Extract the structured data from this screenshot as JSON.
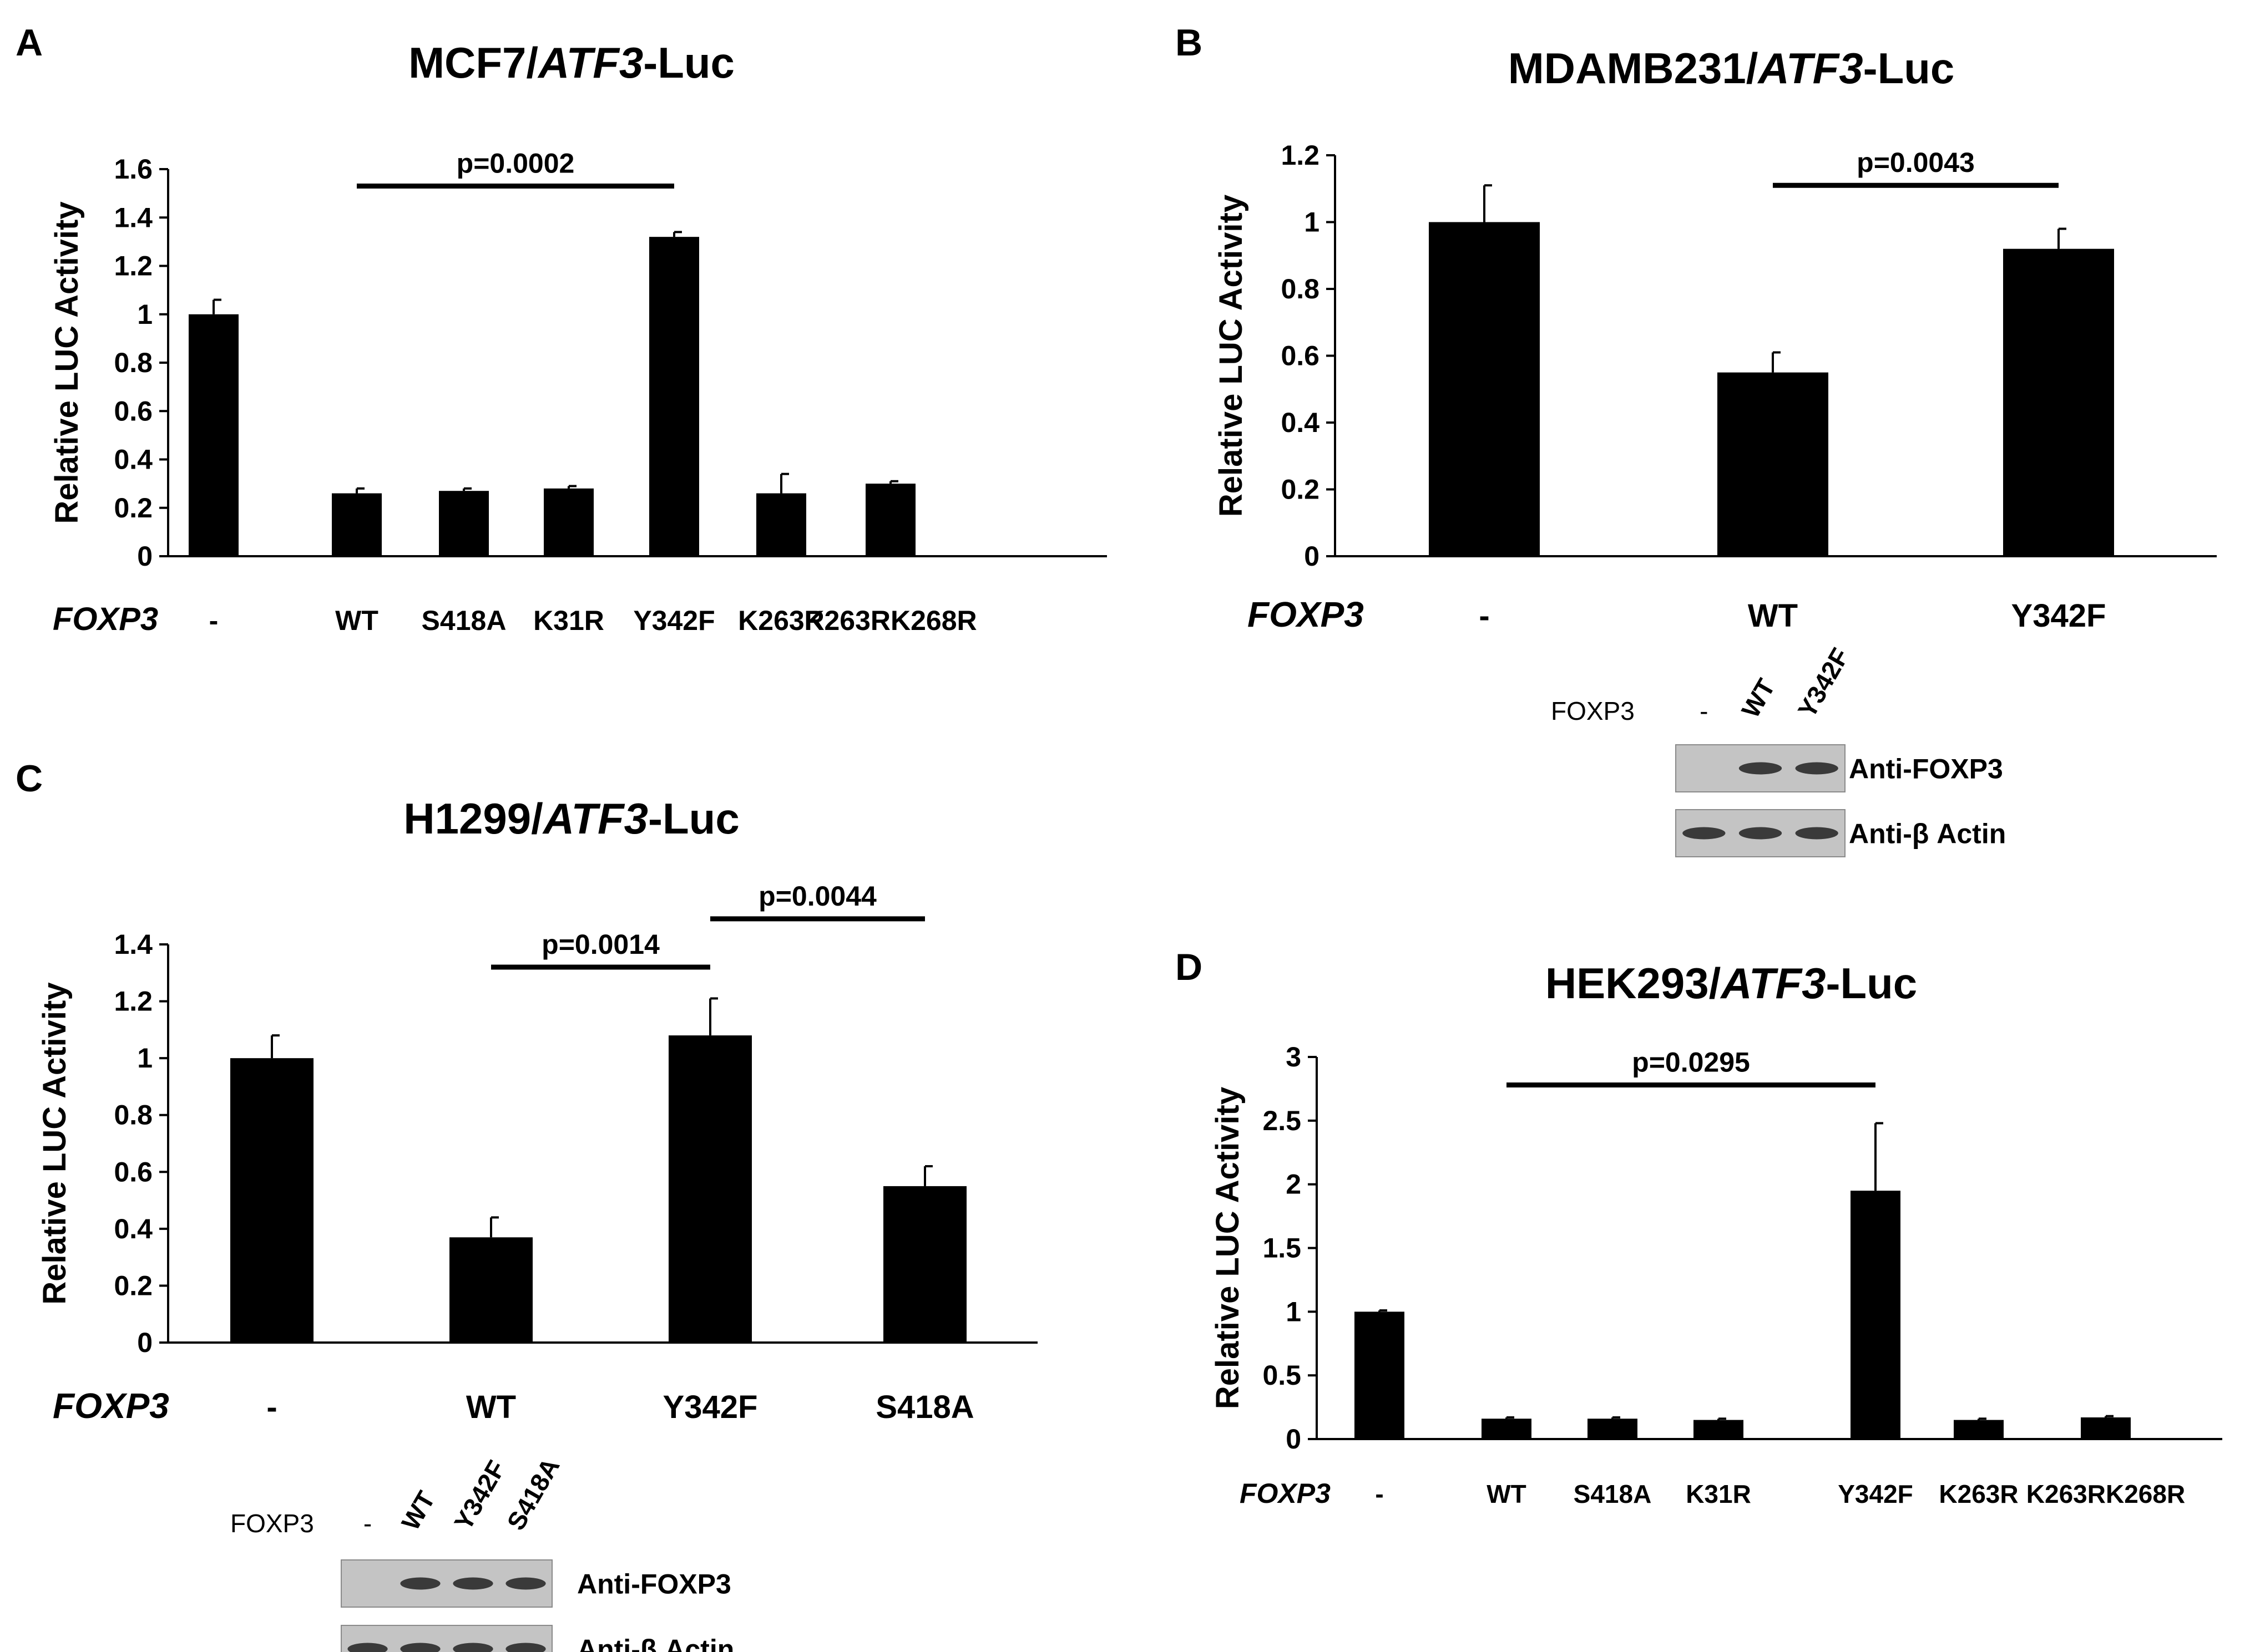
{
  "chart_data": [
    {
      "panel": "A",
      "type": "bar",
      "title_plain": "MCF7/",
      "title_italic": "ATF3",
      "title_suffix": "-Luc",
      "ylabel": "Relative LUC Activity",
      "ylim": [
        0,
        1.6
      ],
      "yticks": [
        "0",
        "0.2",
        "0.4",
        "0.6",
        "0.8",
        "1",
        "1.2",
        "1.4",
        "1.6"
      ],
      "gene_label": "FOXP3",
      "categories": [
        "-",
        "WT",
        "S418A",
        "K31R",
        "Y342F",
        "K263R",
        "K263RK268R"
      ],
      "values": [
        1.0,
        0.26,
        0.27,
        0.28,
        1.32,
        0.26,
        0.3
      ],
      "errors": [
        0.06,
        0.02,
        0.01,
        0.01,
        0.02,
        0.08,
        0.01
      ],
      "significance": [
        {
          "from": 1,
          "to": 4,
          "label": "p=0.0002",
          "y": 1.53
        }
      ]
    },
    {
      "panel": "B",
      "type": "bar",
      "title_plain": "MDAMB231/",
      "title_italic": "ATF3",
      "title_suffix": "-Luc",
      "ylabel": "Relative LUC Activity",
      "ylim": [
        0,
        1.2
      ],
      "yticks": [
        "0",
        "0.2",
        "0.4",
        "0.6",
        "0.8",
        "1",
        "1.2"
      ],
      "gene_label": "FOXP3",
      "categories": [
        "-",
        "WT",
        "Y342F"
      ],
      "values": [
        1.0,
        0.55,
        0.92
      ],
      "errors": [
        0.11,
        0.06,
        0.06
      ],
      "significance": [
        {
          "from": 1,
          "to": 2,
          "label": "p=0.0043",
          "y": 1.11
        }
      ],
      "blot": {
        "gene_label": "FOXP3",
        "lanes": [
          "-",
          "WT",
          "Y342F"
        ],
        "rows": [
          {
            "label": "Anti-FOXP3",
            "bands": [
              false,
              true,
              true
            ]
          },
          {
            "label": "Anti-β Actin",
            "bands": [
              true,
              true,
              true
            ]
          }
        ]
      }
    },
    {
      "panel": "C",
      "type": "bar",
      "title_plain": "H1299/",
      "title_italic": "ATF3",
      "title_suffix": "-Luc",
      "ylabel": "Relative LUC Activity",
      "ylim": [
        0,
        1.4
      ],
      "yticks": [
        "0",
        "0.2",
        "0.4",
        "0.6",
        "0.8",
        "1",
        "1.2",
        "1.4"
      ],
      "gene_label": "FOXP3",
      "categories": [
        "-",
        "WT",
        "Y342F",
        "S418A"
      ],
      "values": [
        1.0,
        0.37,
        1.08,
        0.55
      ],
      "errors": [
        0.08,
        0.07,
        0.13,
        0.07
      ],
      "significance": [
        {
          "from": 1,
          "to": 2,
          "label": "p=0.0014",
          "y": 1.32
        },
        {
          "from": 2,
          "to": 3,
          "label": "p=0.0044",
          "y": 1.49
        }
      ],
      "blot": {
        "gene_label": "FOXP3",
        "lanes": [
          "-",
          "WT",
          "Y342F",
          "S418A"
        ],
        "rows": [
          {
            "label": "Anti-FOXP3",
            "bands": [
              false,
              true,
              true,
              true
            ]
          },
          {
            "label": "Anti-β Actin",
            "bands": [
              true,
              true,
              true,
              true
            ]
          }
        ]
      }
    },
    {
      "panel": "D",
      "type": "bar",
      "title_plain": "HEK293/",
      "title_italic": "ATF3",
      "title_suffix": "-Luc",
      "ylabel": "Relative LUC Activity",
      "ylim": [
        0,
        3
      ],
      "yticks": [
        "0",
        "0.5",
        "1",
        "1.5",
        "2",
        "2.5",
        "3"
      ],
      "gene_label": "FOXP3",
      "categories": [
        "-",
        "WT",
        "S418A",
        "K31R",
        "Y342F",
        "K263R",
        "K263RK268R"
      ],
      "values": [
        1.0,
        0.16,
        0.16,
        0.15,
        1.95,
        0.15,
        0.17
      ],
      "errors": [
        0.01,
        0.01,
        0.01,
        0.01,
        0.53,
        0.01,
        0.01
      ],
      "significance": [
        {
          "from": 1,
          "to": 4,
          "label": "p=0.0295",
          "y": 2.78
        }
      ]
    }
  ]
}
